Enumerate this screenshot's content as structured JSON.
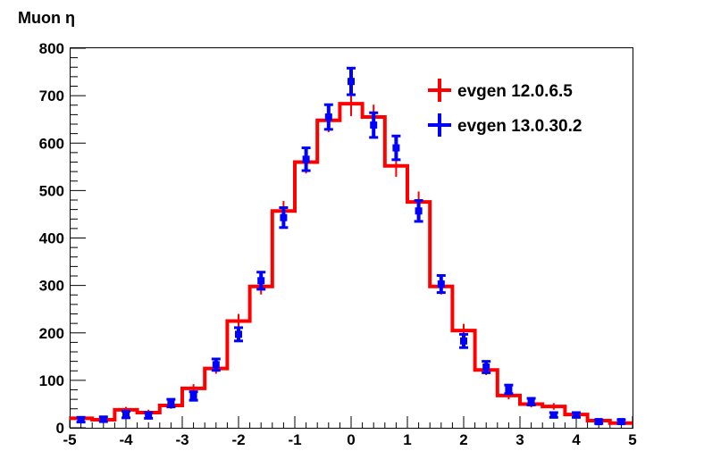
{
  "chart_data": {
    "type": "line",
    "title": "Muon η",
    "xlabel": "",
    "ylabel": "",
    "xlim": [
      -5,
      5
    ],
    "ylim": [
      0,
      800
    ],
    "x_ticks": [
      -5,
      -4,
      -3,
      -2,
      -1,
      0,
      1,
      2,
      3,
      4,
      5
    ],
    "y_ticks": [
      0,
      100,
      200,
      300,
      400,
      500,
      600,
      700,
      800
    ],
    "grid": false,
    "legend_position": "top-right",
    "bin_edges": [
      -5.0,
      -4.6,
      -4.2,
      -3.8,
      -3.4,
      -3.0,
      -2.6,
      -2.2,
      -1.8,
      -1.4,
      -1.0,
      -0.6,
      -0.2,
      0.2,
      0.6,
      1.0,
      1.4,
      1.8,
      2.2,
      2.6,
      3.0,
      3.4,
      3.8,
      4.2,
      4.6,
      5.0
    ],
    "series": [
      {
        "name": "evgen 12.0.6.5",
        "color": "#ff0000",
        "style": "histogram",
        "values": [
          20,
          17,
          38,
          32,
          47,
          83,
          125,
          225,
          298,
          457,
          560,
          648,
          683,
          655,
          552,
          476,
          298,
          205,
          122,
          68,
          50,
          45,
          28,
          15,
          10
        ],
        "errors": [
          4,
          4,
          6,
          6,
          7,
          9,
          11,
          15,
          17,
          21,
          24,
          25,
          26,
          26,
          23,
          22,
          17,
          14,
          11,
          8,
          7,
          7,
          5,
          4,
          3
        ]
      },
      {
        "name": "evgen 13.0.30.2",
        "color": "#0000ff",
        "style": "points",
        "values": [
          17,
          18,
          28,
          26,
          52,
          67,
          133,
          197,
          310,
          443,
          566,
          655,
          730,
          638,
          590,
          457,
          303,
          183,
          128,
          81,
          55,
          27,
          27,
          13,
          13
        ],
        "errors": [
          5,
          5,
          7,
          6,
          8,
          9,
          12,
          14,
          18,
          21,
          24,
          26,
          28,
          26,
          25,
          22,
          18,
          14,
          12,
          9,
          7,
          5,
          5,
          4,
          4
        ]
      }
    ]
  }
}
